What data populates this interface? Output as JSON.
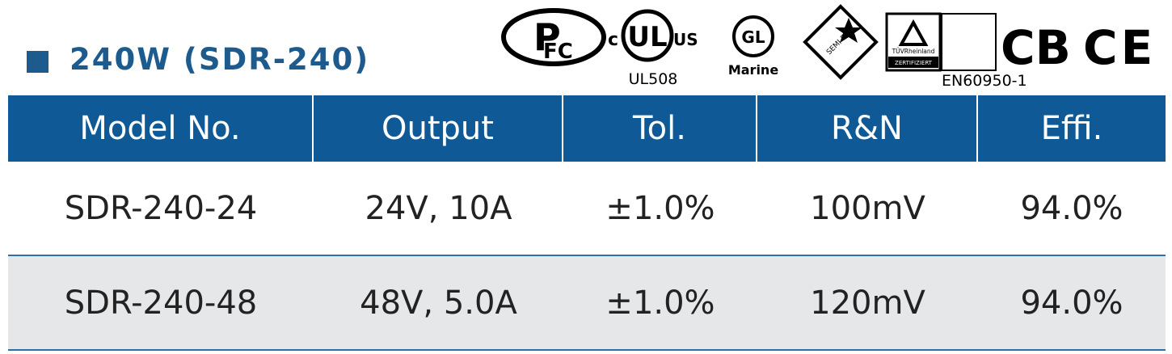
{
  "header": {
    "title": "240W (SDR-240)"
  },
  "certifications": {
    "pfc": "FC",
    "ul_c": "c",
    "ul_us": "US",
    "ul": "UL508",
    "gl": "GL",
    "gl_label": "Marine",
    "semi": "SEMI F47",
    "tuv_brand": "TÜVRheinland",
    "tuv_cert": "ZERTIFIZIERT",
    "tuv_standard": "EN60950-1",
    "cb": "CB",
    "ce": "CE"
  },
  "table": {
    "header": [
      "Model No.",
      "Output",
      "Tol.",
      "R&N",
      "Effi."
    ],
    "rows": [
      [
        "SDR-240-24",
        "24V, 10A",
        "±1.0%",
        "100mV",
        "94.0%"
      ],
      [
        "SDR-240-48",
        "48V, 5.0A",
        "±1.0%",
        "120mV",
        "94.0%"
      ]
    ]
  }
}
